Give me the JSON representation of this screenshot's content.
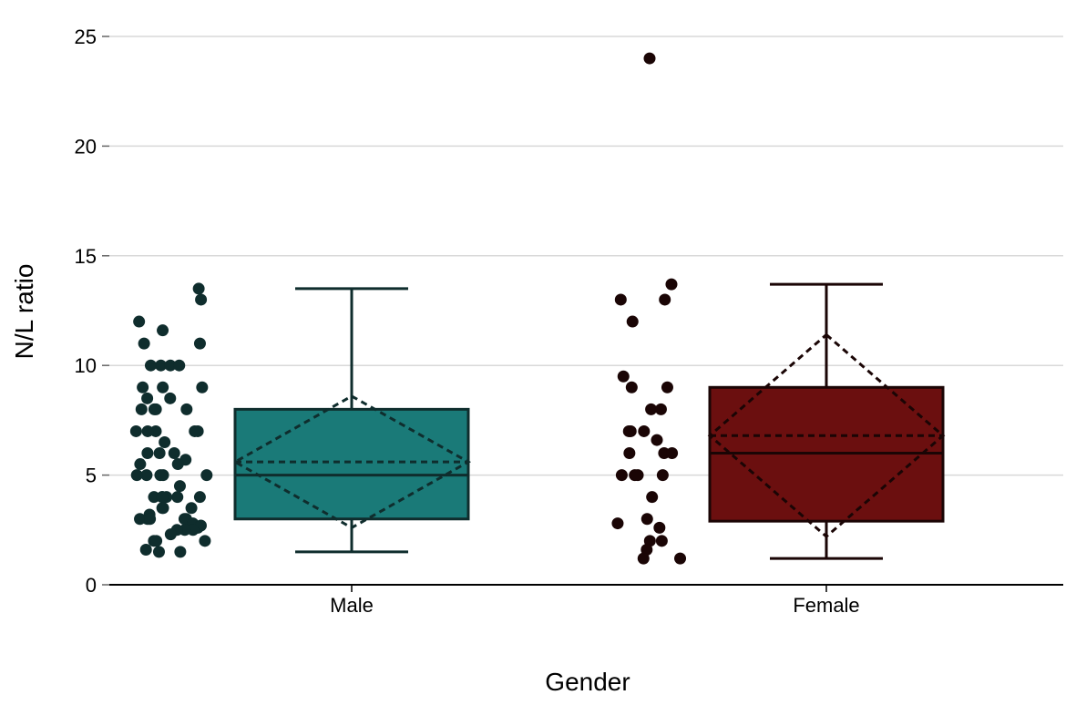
{
  "chart_data": {
    "type": "box",
    "title": "",
    "xlabel": "Gender",
    "ylabel": "N/L ratio",
    "ylim": [
      0,
      25
    ],
    "yticks": [
      0,
      5,
      10,
      15,
      20,
      25
    ],
    "grid": true,
    "categories": [
      "Male",
      "Female"
    ],
    "series": [
      {
        "category": "Male",
        "color": "#1a7a78",
        "stroke": "#0f2d2d",
        "whisker_low": 1.5,
        "q1": 3.0,
        "median": 5.0,
        "q3": 8.0,
        "whisker_high": 13.5,
        "mean": 5.6,
        "mean_diamond_low": 2.6,
        "mean_diamond_high": 8.6,
        "points": [
          13.5,
          13.0,
          12.0,
          11.6,
          11.0,
          11.0,
          10.0,
          10.0,
          10.0,
          10.0,
          9.0,
          9.0,
          9.0,
          8.5,
          8.5,
          8.0,
          8.0,
          8.0,
          8.0,
          7.0,
          7.0,
          7.0,
          7.0,
          7.0,
          6.5,
          6.0,
          6.0,
          6.0,
          5.7,
          5.5,
          5.5,
          5.0,
          5.0,
          5.0,
          5.0,
          5.0,
          4.5,
          4.0,
          4.0,
          4.0,
          4.0,
          4.0,
          4.0,
          3.5,
          3.5,
          3.5,
          3.2,
          3.0,
          3.0,
          3.0,
          3.0,
          3.0,
          2.8,
          2.7,
          2.6,
          2.5,
          2.5,
          2.5,
          2.3,
          2.0,
          2.0,
          2.0,
          1.6,
          1.5,
          1.5
        ]
      },
      {
        "category": "Female",
        "color": "#6b0f0f",
        "stroke": "#1a0505",
        "whisker_low": 1.2,
        "q1": 2.9,
        "median": 6.0,
        "q3": 9.0,
        "whisker_high": 13.7,
        "mean": 6.8,
        "mean_diamond_low": 2.2,
        "mean_diamond_high": 11.4,
        "points": [
          24.0,
          13.7,
          13.0,
          13.0,
          12.0,
          9.5,
          9.0,
          9.0,
          8.0,
          8.0,
          7.0,
          7.0,
          7.0,
          6.6,
          6.0,
          6.0,
          6.0,
          5.0,
          5.0,
          5.0,
          5.0,
          4.0,
          3.0,
          2.8,
          2.6,
          2.0,
          2.0,
          1.6,
          1.2,
          1.2
        ]
      }
    ]
  }
}
